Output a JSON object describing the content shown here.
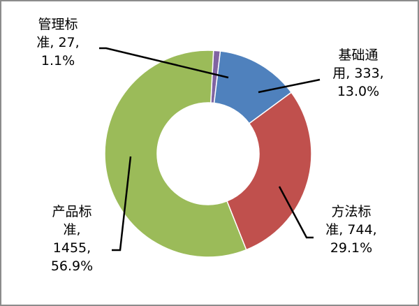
{
  "chart_data": {
    "type": "donut",
    "categories": [
      "管理标准",
      "基础通用",
      "方法标准",
      "产品标准"
    ],
    "values": [
      27,
      333,
      744,
      1455
    ],
    "percentages": [
      1.1,
      13,
      29.1,
      56.9
    ],
    "percentage_labels": [
      "1.1%",
      "13.0%",
      "29.1%",
      "56.9%"
    ],
    "label_separator": ", ",
    "colors": [
      "#8064a2",
      "#4f81bd",
      "#c0504d",
      "#9bbb59"
    ]
  }
}
